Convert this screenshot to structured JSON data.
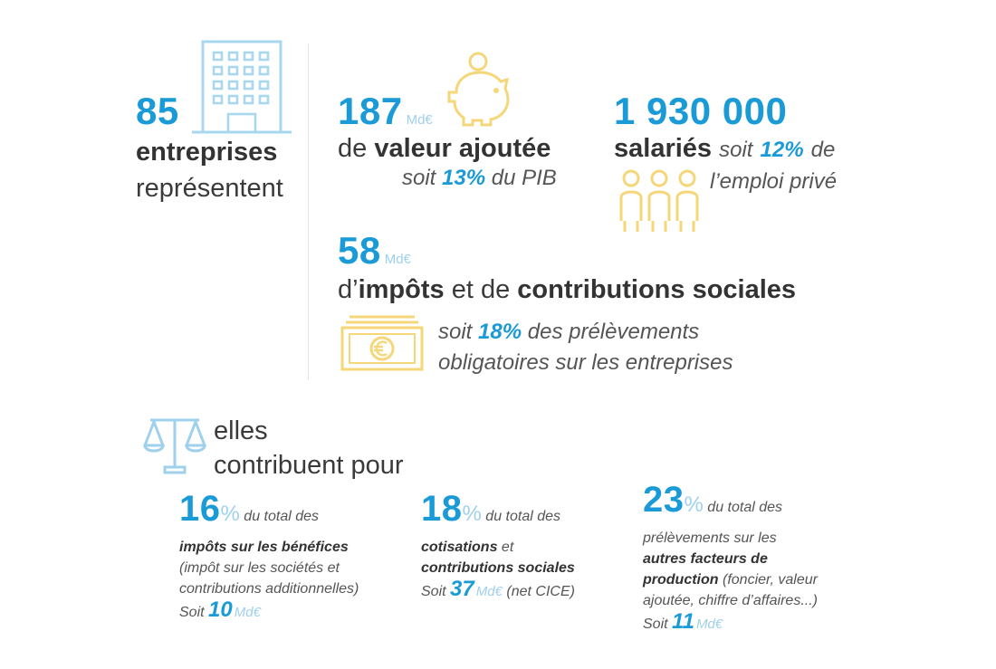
{
  "stats": {
    "companies": {
      "number": "85",
      "line1": "entreprises",
      "line2": "représentent"
    },
    "value_added": {
      "number": "187",
      "unit": "Md€",
      "pre": "de",
      "label": "valeur ajoutée",
      "soit": "soit",
      "pct": "13%",
      "suffix": "du PIB"
    },
    "employees": {
      "number": "1 930 000",
      "label": "salariés",
      "soit": "soit",
      "pct": "12%",
      "de": "de",
      "line2": "l’emploi privé"
    },
    "taxes": {
      "number": "58",
      "unit": "Md€",
      "pre": "d’",
      "label1": "impôts",
      "mid": "et de",
      "label2": "contributions sociales",
      "soit": "soit",
      "pct": "18%",
      "suffix1": "des prélèvements",
      "suffix2": "obligatoires sur les entreprises"
    }
  },
  "contribution": {
    "line1": "elles",
    "line2": "contribuent pour",
    "items": [
      {
        "pct": "16",
        "pct_sign": "%",
        "text1": "du total des",
        "bold": "impôts sur les bénéfices",
        "paren1": "(impôt sur les sociétés et",
        "paren2": "contributions additionnelles)",
        "soit": "Soit",
        "amount": "10",
        "unit": "Md€"
      },
      {
        "pct": "18",
        "pct_sign": "%",
        "text1": "du total des",
        "bold1": "cotisations",
        "and": "et",
        "bold2": "contributions sociales",
        "soit": "Soit",
        "amount": "37",
        "unit": "Md€",
        "tail": "(net CICE)"
      },
      {
        "pct": "23",
        "pct_sign": "%",
        "text1": "du total des",
        "text2": "prélèvements sur les",
        "bold1": "autres facteurs de",
        "bold2": "production",
        "paren1": "(foncier, valeur",
        "paren2": "ajoutée, chiffre d’affaires...)",
        "soit": "Soit",
        "amount": "11",
        "unit": "Md€"
      }
    ]
  },
  "colors": {
    "blue": "#1a9ad6",
    "light_blue": "#9fd0ec",
    "yellow": "#f5d77a",
    "dark": "#333333"
  },
  "icons": [
    "building-icon",
    "piggy-bank-icon",
    "people-icon",
    "banknote-icon",
    "scales-icon"
  ]
}
